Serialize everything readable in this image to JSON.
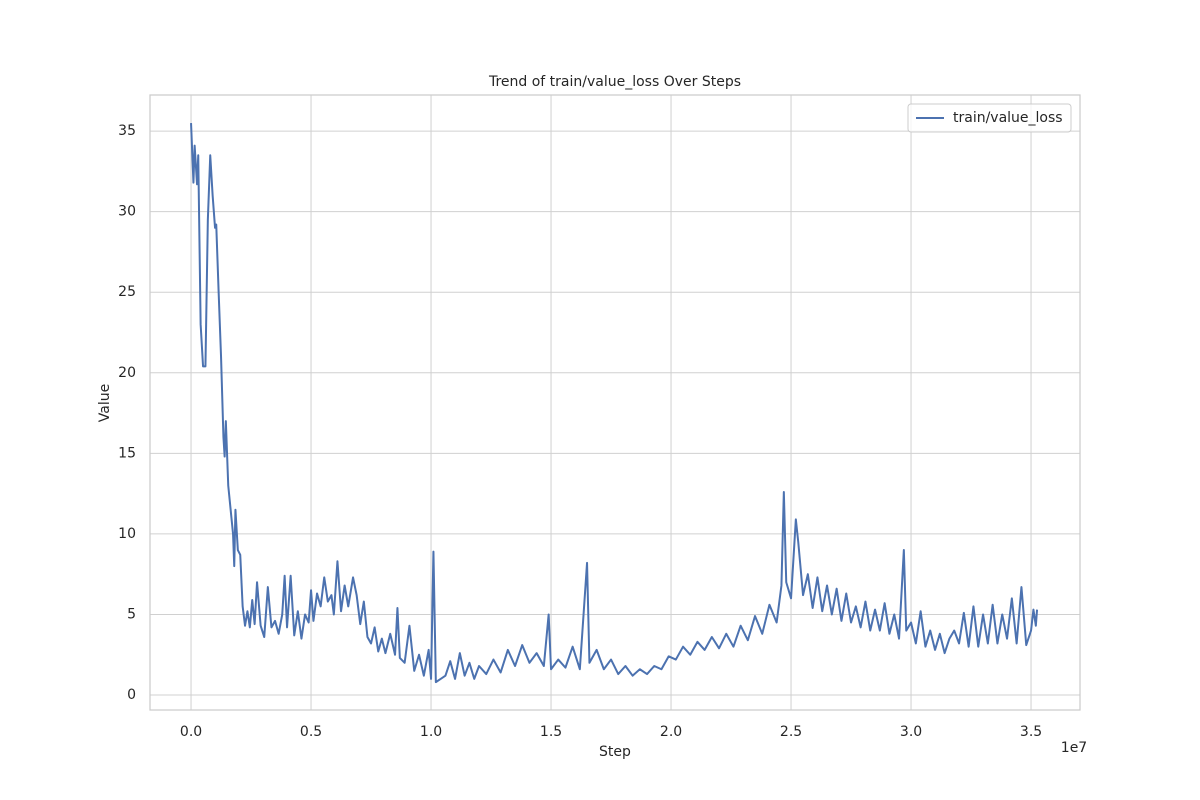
{
  "chart_data": {
    "type": "line",
    "title": "Trend of train/value_loss Over Steps",
    "x_label": "Step",
    "y_label": "Value",
    "x_offset_label": "1e7",
    "x": [
      0,
      100000,
      150000,
      250000,
      300000,
      400000,
      500000,
      600000,
      700000,
      800000,
      900000,
      1000000,
      1050000,
      1150000,
      1250000,
      1350000,
      1400000,
      1450000,
      1550000,
      1650000,
      1750000,
      1800000,
      1850000,
      1950000,
      2050000,
      2150000,
      2250000,
      2350000,
      2450000,
      2550000,
      2650000,
      2750000,
      2900000,
      3050000,
      3200000,
      3350000,
      3500000,
      3650000,
      3800000,
      3900000,
      4000000,
      4150000,
      4300000,
      4450000,
      4600000,
      4750000,
      4900000,
      5000000,
      5100000,
      5250000,
      5400000,
      5550000,
      5700000,
      5850000,
      5950000,
      6100000,
      6250000,
      6400000,
      6550000,
      6750000,
      6900000,
      7050000,
      7200000,
      7350000,
      7500000,
      7650000,
      7800000,
      7950000,
      8100000,
      8300000,
      8500000,
      8600000,
      8700000,
      8900000,
      9100000,
      9300000,
      9500000,
      9700000,
      9900000,
      10000000,
      10100000,
      10200000,
      10400000,
      10600000,
      10800000,
      11000000,
      11200000,
      11400000,
      11600000,
      11800000,
      12000000,
      12300000,
      12600000,
      12900000,
      13200000,
      13500000,
      13800000,
      14100000,
      14400000,
      14700000,
      14900000,
      15000000,
      15300000,
      15600000,
      15900000,
      16200000,
      16500000,
      16600000,
      16900000,
      17200000,
      17500000,
      17800000,
      18100000,
      18400000,
      18700000,
      19000000,
      19300000,
      19600000,
      19900000,
      20200000,
      20500000,
      20800000,
      21100000,
      21400000,
      21700000,
      22000000,
      22300000,
      22600000,
      22900000,
      23200000,
      23500000,
      23800000,
      24100000,
      24400000,
      24600000,
      24700000,
      24800000,
      25000000,
      25200000,
      25300000,
      25500000,
      25700000,
      25900000,
      26100000,
      26300000,
      26500000,
      26700000,
      26900000,
      27100000,
      27300000,
      27500000,
      27700000,
      27900000,
      28100000,
      28300000,
      28500000,
      28700000,
      28900000,
      29100000,
      29300000,
      29500000,
      29700000,
      29800000,
      30000000,
      30200000,
      30400000,
      30600000,
      30800000,
      31000000,
      31200000,
      31400000,
      31600000,
      31800000,
      32000000,
      32200000,
      32400000,
      32600000,
      32800000,
      33000000,
      33200000,
      33400000,
      33600000,
      33800000,
      34000000,
      34200000,
      34400000,
      34600000,
      34800000,
      35000000,
      35100000,
      35200000,
      35250000
    ],
    "series": [
      {
        "name": "train/value_loss",
        "color": "#4c72b0",
        "values": [
          35.5,
          31.8,
          34.1,
          31.7,
          33.5,
          23,
          20.4,
          20.4,
          29.5,
          33.5,
          31,
          29,
          29.2,
          25,
          21,
          16,
          14.8,
          17,
          13,
          11.5,
          10,
          8,
          11.5,
          9,
          8.7,
          5.5,
          4.3,
          5.2,
          4.2,
          5.9,
          4.4,
          7,
          4.3,
          3.6,
          6.7,
          4.2,
          4.6,
          3.8,
          5,
          7.4,
          4.2,
          7.4,
          3.7,
          5.2,
          3.5,
          5,
          4.5,
          6.5,
          4.6,
          6.3,
          5.5,
          7.3,
          5.8,
          6.2,
          5,
          8.3,
          5.2,
          6.8,
          5.5,
          7.3,
          6.2,
          4.4,
          5.8,
          3.6,
          3.2,
          4.2,
          2.7,
          3.5,
          2.6,
          3.8,
          2.5,
          5.4,
          2.3,
          2.0,
          4.3,
          1.5,
          2.5,
          1.2,
          2.8,
          1.0,
          8.9,
          0.8,
          1.0,
          1.2,
          2.1,
          1.0,
          2.6,
          1.2,
          2.0,
          1.0,
          1.8,
          1.3,
          2.2,
          1.4,
          2.8,
          1.8,
          3.1,
          2.0,
          2.6,
          1.8,
          5.0,
          1.6,
          2.2,
          1.7,
          3.0,
          1.6,
          8.2,
          2.0,
          2.8,
          1.6,
          2.2,
          1.3,
          1.8,
          1.2,
          1.6,
          1.3,
          1.8,
          1.6,
          2.4,
          2.2,
          3.0,
          2.5,
          3.3,
          2.8,
          3.6,
          2.9,
          3.8,
          3.0,
          4.3,
          3.4,
          4.9,
          3.8,
          5.6,
          4.5,
          6.8,
          12.6,
          7.0,
          6.0,
          10.9,
          9.5,
          6.2,
          7.5,
          5.4,
          7.3,
          5.2,
          6.8,
          5.0,
          6.6,
          4.6,
          6.3,
          4.5,
          5.5,
          4.2,
          5.8,
          4.0,
          5.3,
          4.0,
          5.7,
          3.8,
          5.0,
          3.5,
          9.0,
          4.0,
          4.5,
          3.2,
          5.2,
          3.0,
          4.0,
          2.8,
          3.8,
          2.6,
          3.5,
          4.0,
          3.2,
          5.1,
          3.0,
          5.5,
          3.0,
          5.0,
          3.2,
          5.6,
          3.2,
          5.0,
          3.5,
          6.0,
          3.2,
          6.7,
          3.1,
          4.0,
          5.3,
          4.3,
          5.3
        ]
      }
    ],
    "xlim": [
      -1710000,
      37040000
    ],
    "xticks": [
      {
        "value": 0,
        "label": "0.0"
      },
      {
        "value": 5000000,
        "label": "0.5"
      },
      {
        "value": 10000000,
        "label": "1.0"
      },
      {
        "value": 15000000,
        "label": "1.5"
      },
      {
        "value": 20000000,
        "label": "2.0"
      },
      {
        "value": 25000000,
        "label": "2.5"
      },
      {
        "value": 30000000,
        "label": "3.0"
      },
      {
        "value": 35000000,
        "label": "3.5"
      }
    ],
    "ylim": [
      -0.93,
      37.24
    ],
    "yticks": [
      0,
      5,
      10,
      15,
      20,
      25,
      30,
      35
    ],
    "grid": true,
    "legend": "upper right"
  }
}
